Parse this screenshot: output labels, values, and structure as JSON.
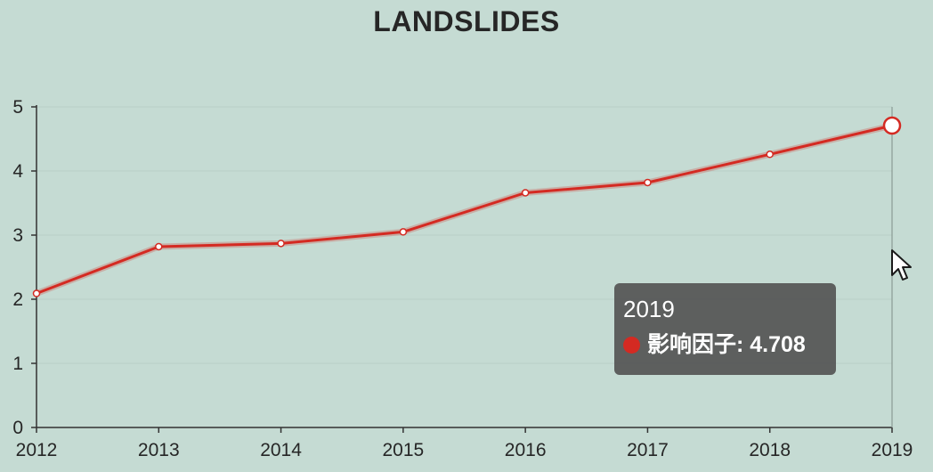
{
  "chart_data": {
    "type": "line",
    "title": "LANDSLIDES",
    "xlabel": "",
    "ylabel": "",
    "categories": [
      "2012",
      "2013",
      "2014",
      "2015",
      "2016",
      "2017",
      "2018",
      "2019"
    ],
    "series": [
      {
        "name": "影响因子",
        "values": [
          2.09,
          2.82,
          2.87,
          3.05,
          3.66,
          3.82,
          4.26,
          4.708
        ],
        "color": "#d42a22"
      }
    ],
    "ylim": [
      0,
      5
    ],
    "yticks": [
      0,
      1,
      2,
      3,
      4,
      5
    ],
    "grid": true,
    "legend": "none",
    "highlighted_category": "2019"
  },
  "tooltip": {
    "title": "2019",
    "series_name": "影响因子",
    "value": "4.708",
    "text": "影响因子: 4.708"
  },
  "colors": {
    "background": "#c5dbd3",
    "line": "#d42a22",
    "axis": "#333333",
    "grid": "#b9cfc7",
    "tooltip_bg": "#555555"
  }
}
